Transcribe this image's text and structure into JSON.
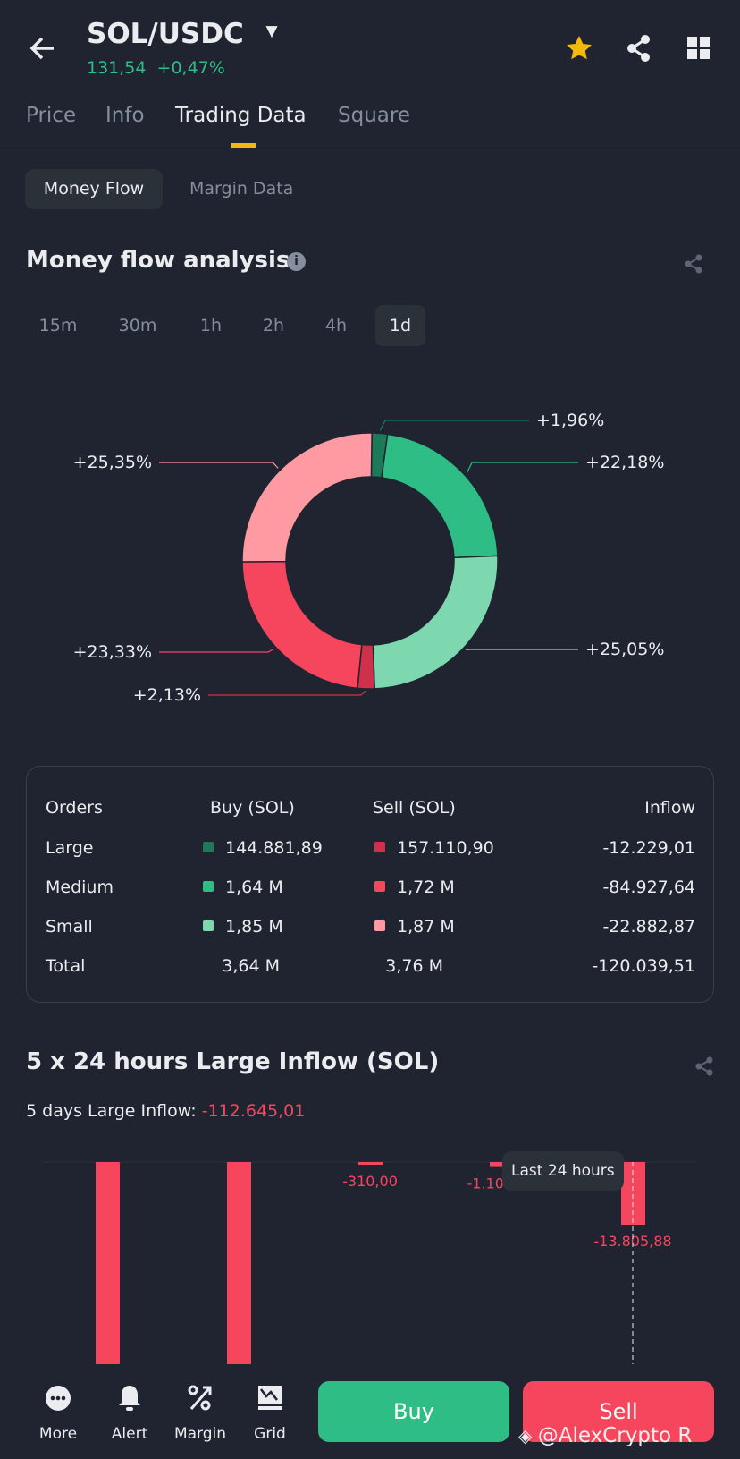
{
  "header": {
    "pair": "SOL/USDC",
    "price": "131,54",
    "change": "+0,47%"
  },
  "tabs": [
    {
      "label": "Price"
    },
    {
      "label": "Info"
    },
    {
      "label": "Trading Data",
      "active": true
    },
    {
      "label": "Square"
    }
  ],
  "subtabs": [
    {
      "label": "Money Flow",
      "active": true
    },
    {
      "label": "Margin Data"
    }
  ],
  "money_flow": {
    "title": "Money flow analysis",
    "timeframes": [
      "15m",
      "30m",
      "1h",
      "2h",
      "4h",
      "1d"
    ],
    "active_timeframe": "1d"
  },
  "colors": {
    "bg": "#1f2430",
    "green": "#2ebd85",
    "red": "#f6465d",
    "star": "#f0b90b"
  },
  "chart_data": [
    {
      "type": "pie",
      "donut": true,
      "slices": [
        {
          "label": "+1,96%",
          "value": 1.96,
          "color": "#1c7a5a"
        },
        {
          "label": "+22,18%",
          "value": 22.18,
          "color": "#2ebd85"
        },
        {
          "label": "+25,05%",
          "value": 25.05,
          "color": "#7dd8b0"
        },
        {
          "label": "+2,13%",
          "value": 2.13,
          "color": "#cf304a"
        },
        {
          "label": "+23,33%",
          "value": 23.33,
          "color": "#f6465d"
        },
        {
          "label": "+25,35%",
          "value": 25.35,
          "color": "#ff9aa2"
        }
      ]
    },
    {
      "type": "bar",
      "title": "5 x 24 hours Large Inflow (SOL)",
      "values": [
        null,
        null,
        -310.0,
        -1101.51,
        -13805.88
      ],
      "labels": [
        "",
        "",
        "-310,00",
        "-1.101,51",
        "-13.805,88"
      ],
      "note_clipped": [
        true,
        true,
        false,
        false,
        false
      ],
      "tooltip": "Last 24 hours"
    }
  ],
  "orders_table": {
    "headers": [
      "Orders",
      "Buy (SOL)",
      "Sell (SOL)",
      "Inflow"
    ],
    "rows": [
      {
        "name": "Large",
        "buy": "144.881,89",
        "sell": "157.110,90",
        "inflow": "-12.229,01",
        "buy_color": "#1c7a5a",
        "sell_color": "#cf304a"
      },
      {
        "name": "Medium",
        "buy": "1,64 M",
        "sell": "1,72 M",
        "inflow": "-84.927,64",
        "buy_color": "#2ebd85",
        "sell_color": "#f6465d"
      },
      {
        "name": "Small",
        "buy": "1,85 M",
        "sell": "1,87 M",
        "inflow": "-22.882,87",
        "buy_color": "#7dd8b0",
        "sell_color": "#ff9aa2"
      },
      {
        "name": "Total",
        "buy": "3,64 M",
        "sell": "3,76 M",
        "inflow": "-120.039,51"
      }
    ]
  },
  "large_inflow": {
    "title": "5 x 24 hours Large Inflow (SOL)",
    "subtitle_label": "5 days Large Inflow:",
    "subtitle_value": "-112.645,01"
  },
  "bottom_nav": {
    "items": [
      "More",
      "Alert",
      "Margin",
      "Grid"
    ],
    "buy": "Buy",
    "sell": "Sell"
  },
  "watermark": "@AlexCrypto R"
}
